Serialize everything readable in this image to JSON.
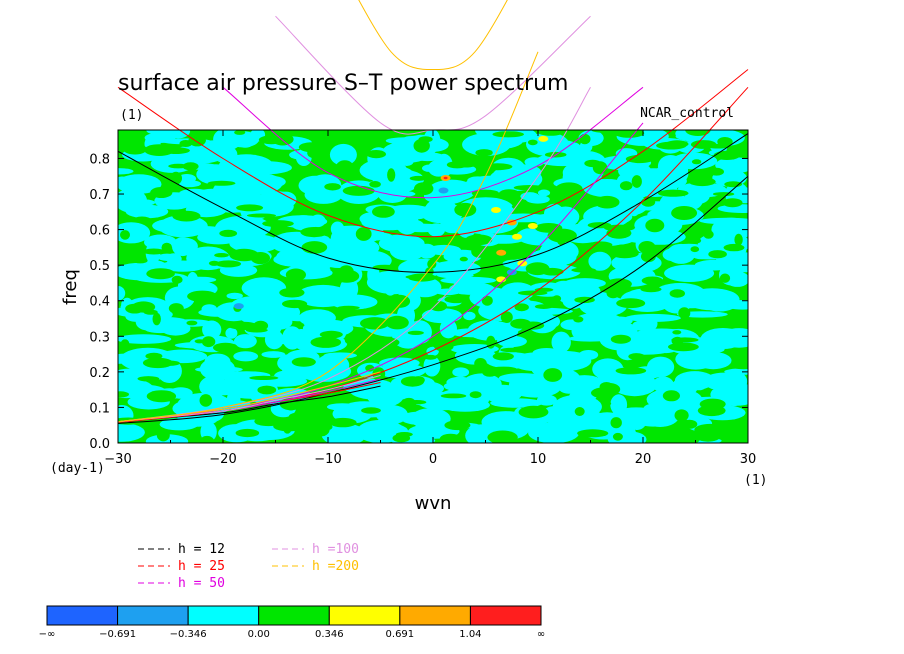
{
  "chart_data": {
    "type": "heatmap",
    "title": "surface air pressure S–T power spectrum",
    "subtitle_left": "(1)",
    "subtitle_right": "NCAR_control",
    "xlabel": "wvn",
    "ylabel": "freq",
    "x_unit": "(1)",
    "y_unit": "(day-1)",
    "xlim": [
      -30,
      30
    ],
    "ylim": [
      0,
      0.88
    ],
    "xticks": [
      -30,
      -20,
      -10,
      0,
      10,
      20,
      30
    ],
    "xtick_labels": [
      "−30",
      "−20",
      "−10",
      "0",
      "10",
      "20",
      "30"
    ],
    "yticks": [
      0.0,
      0.1,
      0.2,
      0.3,
      0.4,
      0.5,
      0.6,
      0.7,
      0.8
    ],
    "ytick_labels": [
      "0.0",
      "0.1",
      "0.2",
      "0.3",
      "0.4",
      "0.5",
      "0.6",
      "0.7",
      "0.8"
    ],
    "colorbar": {
      "colors": [
        "#1e64ff",
        "#1ea0f0",
        "#00ffff",
        "#00e600",
        "#ffff00",
        "#ffaa00",
        "#ff1e1e"
      ],
      "labels": [
        "−∞",
        "−0.691",
        "−0.346",
        "0.00",
        "0.346",
        "0.691",
        "1.04",
        "∞"
      ]
    },
    "background_color": "#00e600",
    "dispersion_curves": [
      {
        "h": 12,
        "label": "h = 12",
        "color": "#000000",
        "kelvin": [
          [
            -30,
            0.055
          ],
          [
            -20,
            0.08
          ],
          [
            -10,
            0.14
          ],
          [
            0,
            0.22
          ],
          [
            10,
            0.33
          ],
          [
            20,
            0.5
          ],
          [
            30,
            0.75
          ]
        ],
        "inertia_gravity": [
          [
            -30,
            0.82
          ],
          [
            -20,
            0.66
          ],
          [
            -10,
            0.52
          ],
          [
            0,
            0.48
          ],
          [
            10,
            0.53
          ],
          [
            20,
            0.68
          ],
          [
            30,
            0.87
          ]
        ],
        "rossby": [
          [
            -30,
            0.06
          ],
          [
            -20,
            0.085
          ],
          [
            -15,
            0.11
          ],
          [
            -10,
            0.13
          ],
          [
            -5,
            0.16
          ]
        ]
      },
      {
        "h": 25,
        "label": "h = 25",
        "color": "#ff0000",
        "kelvin": [
          [
            -30,
            0.058
          ],
          [
            -20,
            0.09
          ],
          [
            -10,
            0.15
          ],
          [
            0,
            0.26
          ],
          [
            10,
            0.43
          ],
          [
            20,
            0.68
          ],
          [
            30,
            1.0
          ]
        ],
        "inertia_gravity": [
          [
            -30,
            1.0
          ],
          [
            -20,
            0.8
          ],
          [
            -10,
            0.64
          ],
          [
            0,
            0.58
          ],
          [
            10,
            0.65
          ],
          [
            20,
            0.82
          ],
          [
            30,
            1.05
          ]
        ],
        "rossby": [
          [
            -30,
            0.06
          ],
          [
            -20,
            0.09
          ],
          [
            -15,
            0.115
          ],
          [
            -10,
            0.14
          ],
          [
            -5,
            0.17
          ]
        ]
      },
      {
        "h": 50,
        "label": "h = 50",
        "color": "#e000e0",
        "kelvin": [
          [
            -30,
            0.06
          ],
          [
            -20,
            0.095
          ],
          [
            -10,
            0.16
          ],
          [
            0,
            0.3
          ],
          [
            10,
            0.55
          ],
          [
            20,
            0.9
          ]
        ],
        "inertia_gravity": [
          [
            -20,
            1.0
          ],
          [
            -10,
            0.76
          ],
          [
            0,
            0.69
          ],
          [
            10,
            0.78
          ],
          [
            20,
            1.0
          ]
        ],
        "rossby": [
          [
            -30,
            0.06
          ],
          [
            -20,
            0.09
          ],
          [
            -15,
            0.115
          ],
          [
            -10,
            0.145
          ],
          [
            -5,
            0.18
          ]
        ]
      },
      {
        "h": 100,
        "label": "h =100",
        "color": "#e090e0",
        "kelvin": [
          [
            -30,
            0.06
          ],
          [
            -20,
            0.1
          ],
          [
            -10,
            0.18
          ],
          [
            0,
            0.38
          ],
          [
            10,
            0.75
          ],
          [
            15,
            1.0
          ]
        ],
        "inertia_gravity": [
          [
            -15,
            1.2
          ],
          [
            -5,
            0.9
          ],
          [
            0,
            0.88
          ],
          [
            5,
            0.92
          ],
          [
            15,
            1.2
          ]
        ],
        "rossby": [
          [
            -30,
            0.06
          ],
          [
            -20,
            0.09
          ],
          [
            -15,
            0.12
          ],
          [
            -10,
            0.15
          ],
          [
            -5,
            0.19
          ]
        ]
      },
      {
        "h": 200,
        "label": "h =200",
        "color": "#ffc000",
        "kelvin": [
          [
            -30,
            0.06
          ],
          [
            -20,
            0.1
          ],
          [
            -10,
            0.2
          ],
          [
            0,
            0.5
          ],
          [
            5,
            0.75
          ],
          [
            10,
            1.1
          ]
        ],
        "inertia_gravity": [
          [
            -9,
            1.35
          ],
          [
            -4,
            1.1
          ],
          [
            0,
            1.05
          ],
          [
            4,
            1.1
          ],
          [
            9,
            1.35
          ]
        ],
        "rossby": [
          [
            -30,
            0.06
          ],
          [
            -20,
            0.095
          ],
          [
            -15,
            0.125
          ],
          [
            -10,
            0.16
          ],
          [
            -5,
            0.2
          ]
        ]
      }
    ],
    "blobs": [
      {
        "x": 1.2,
        "y": 0.745,
        "c": "#ffaa00"
      },
      {
        "x": 1.2,
        "y": 0.745,
        "c": "#ff1e1e",
        "r": 0.4
      },
      {
        "x": 6.0,
        "y": 0.655,
        "c": "#ffff00"
      },
      {
        "x": 7.5,
        "y": 0.62,
        "c": "#ffaa00"
      },
      {
        "x": 8.0,
        "y": 0.58,
        "c": "#ffff00"
      },
      {
        "x": 6.5,
        "y": 0.535,
        "c": "#ffaa00"
      },
      {
        "x": 8.5,
        "y": 0.505,
        "c": "#ffff00"
      },
      {
        "x": 9.5,
        "y": 0.61,
        "c": "#ffff00"
      },
      {
        "x": 10.5,
        "y": 0.855,
        "c": "#ffff00"
      },
      {
        "x": 6.5,
        "y": 0.46,
        "c": "#ffff00"
      },
      {
        "x": 1.0,
        "y": 0.71,
        "c": "#1ea0f0"
      },
      {
        "x": -18.5,
        "y": 0.385,
        "c": "#1ea0f0"
      },
      {
        "x": 7.5,
        "y": 0.48,
        "c": "#1ea0f0"
      }
    ]
  }
}
